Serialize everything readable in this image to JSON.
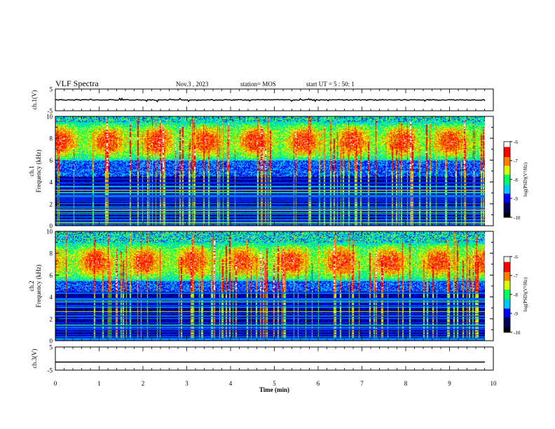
{
  "header": {
    "title": "VLF Spectra",
    "date": "Nov.3 , 2023",
    "station": "station= MOS",
    "start": "start UT = 5 : 50: 1"
  },
  "chart_data": [
    {
      "type": "line",
      "ylabel": "ch.1(V)",
      "ylim": [
        -5,
        5
      ],
      "yticks": [
        "5",
        "-5"
      ],
      "x": [
        0,
        10
      ],
      "values": [
        0.0,
        0.0
      ]
    },
    {
      "type": "heatmap",
      "ylabel": "ch.1 Frequency (kHz)",
      "ylim": [
        0,
        10
      ],
      "yticks": [
        "0",
        "2",
        "4",
        "6",
        "8",
        "10"
      ],
      "xlim": [
        0,
        9.8
      ],
      "colorbar": {
        "label": "log(PSD)(V²/Hz)",
        "range": [
          -10,
          -6
        ],
        "ticks": [
          "-6",
          "-7",
          "-8",
          "-9",
          "-10"
        ]
      },
      "emission_band_khz": [
        6,
        9.5
      ],
      "line_interference_khz": [
        0.3,
        0.6,
        1.2,
        1.5,
        2.7,
        3.1,
        3.3,
        3.6
      ]
    },
    {
      "type": "heatmap",
      "ylabel": "ch.2 Frequency (kHz)",
      "ylim": [
        0,
        10
      ],
      "yticks": [
        "0",
        "2",
        "4",
        "6",
        "8",
        "10"
      ],
      "xlim": [
        0,
        9.8
      ],
      "colorbar": {
        "label": "log(PSD)(V²/Hz)",
        "range": [
          -10,
          -6
        ],
        "ticks": [
          "-6",
          "-7",
          "-8",
          "-9",
          "-10"
        ]
      },
      "emission_band_khz": [
        5.5,
        9.0
      ],
      "line_interference_khz": [
        0.6,
        1.2,
        1.5,
        2.7,
        3.1,
        3.6,
        3.8
      ]
    },
    {
      "type": "line",
      "ylabel": "ch.3(V)",
      "ylim": [
        -5,
        5
      ],
      "yticks": [
        "5",
        "-5"
      ],
      "x": [
        0,
        10
      ],
      "values": [
        -1.5,
        -1.5
      ]
    }
  ],
  "xaxis": {
    "label": "Time (min)",
    "ticks": [
      "0",
      "1",
      "2",
      "3",
      "4",
      "5",
      "6",
      "7",
      "8",
      "9",
      "10"
    ],
    "range": [
      0,
      10
    ]
  },
  "colors": {
    "colormap": [
      "#000000",
      "#00005a",
      "#0000ff",
      "#00c8ff",
      "#00ff60",
      "#d8ff00",
      "#ff8000",
      "#ff0000",
      "#ffffff"
    ]
  }
}
